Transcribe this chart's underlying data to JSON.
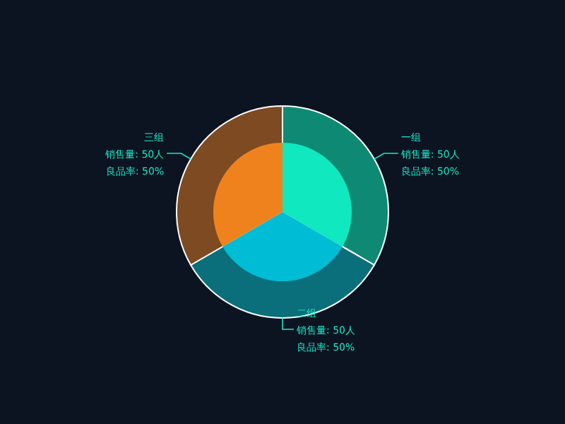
{
  "chart_data": {
    "type": "pie",
    "categories": [
      "一组",
      "二组",
      "三组"
    ],
    "series": [
      {
        "values": [
          50,
          50,
          50
        ],
        "colors": [
          "#0e8a74",
          "#0a6f7a",
          "#7d4a22"
        ],
        "value_labels": [
          "销售量: 50人",
          "销售量: 50人",
          "销售量: 50人"
        ]
      },
      {
        "values": [
          50,
          50,
          50
        ],
        "colors": [
          "#10e8c0",
          "#00bcd4",
          "#f0821e"
        ],
        "value_labels": [
          "良品率: 50%",
          "良品率: 50%",
          "良品率: 50%"
        ]
      }
    ]
  }
}
